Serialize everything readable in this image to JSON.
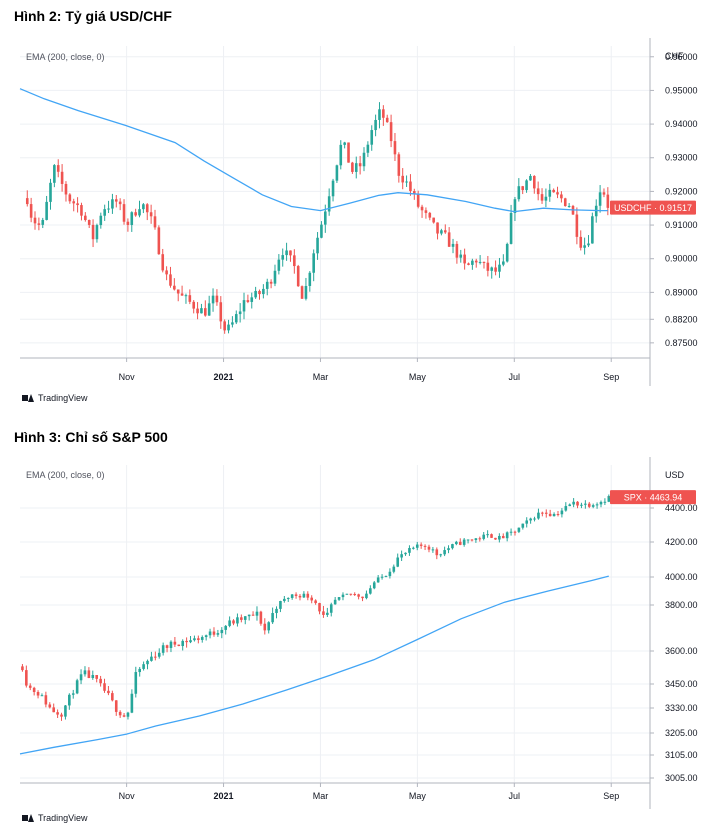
{
  "figures": [
    {
      "title": "Hình 2: Tỷ giá USD/CHF"
    },
    {
      "title": "Hình 3: Chỉ số S&P 500"
    }
  ],
  "branding": {
    "tradingview_label": "TradingView"
  },
  "chart_data": [
    {
      "type": "candlestick",
      "title": "Hình 2: Tỷ giá USD/CHF",
      "indicator_label": "EMA (200, close, 0)",
      "currency_label": "CHF",
      "y_ticks": [
        "0.96000",
        "0.95000",
        "0.94000",
        "0.93000",
        "0.92000",
        "0.91000",
        "0.90000",
        "0.89000",
        "0.88200",
        "0.87500"
      ],
      "x_ticks": [
        {
          "label": "Nov",
          "pos": 3
        },
        {
          "label": "2021",
          "pos": 5
        },
        {
          "label": "Mar",
          "pos": 7
        },
        {
          "label": "May",
          "pos": 9
        },
        {
          "label": "Jul",
          "pos": 11
        },
        {
          "label": "Sep",
          "pos": 13
        }
      ],
      "x_range": [
        0.8,
        13.8
      ],
      "ylim": [
        0.8705,
        0.9632
      ],
      "price_line": {
        "symbol": "USDCHF",
        "value": 0.91517,
        "label": "USDCHF · 0.91517"
      },
      "close_path": [
        [
          0.95,
          0.918
        ],
        [
          1.05,
          0.912
        ],
        [
          1.25,
          0.909
        ],
        [
          1.5,
          0.927
        ],
        [
          1.8,
          0.918
        ],
        [
          2.05,
          0.915
        ],
        [
          2.3,
          0.906
        ],
        [
          2.5,
          0.915
        ],
        [
          2.8,
          0.917
        ],
        [
          3.0,
          0.91
        ],
        [
          3.3,
          0.917
        ],
        [
          3.55,
          0.91
        ],
        [
          3.8,
          0.895
        ],
        [
          4.1,
          0.889
        ],
        [
          4.4,
          0.886
        ],
        [
          4.6,
          0.884
        ],
        [
          4.8,
          0.888
        ],
        [
          5.05,
          0.878
        ],
        [
          5.2,
          0.881
        ],
        [
          5.45,
          0.888
        ],
        [
          5.7,
          0.889
        ],
        [
          5.95,
          0.893
        ],
        [
          6.2,
          0.903
        ],
        [
          6.45,
          0.898
        ],
        [
          6.65,
          0.888
        ],
        [
          6.85,
          0.902
        ],
        [
          7.05,
          0.912
        ],
        [
          7.25,
          0.924
        ],
        [
          7.45,
          0.935
        ],
        [
          7.65,
          0.926
        ],
        [
          7.85,
          0.928
        ],
        [
          8.05,
          0.938
        ],
        [
          8.25,
          0.944
        ],
        [
          8.45,
          0.936
        ],
        [
          8.6,
          0.926
        ],
        [
          8.8,
          0.922
        ],
        [
          9.0,
          0.916
        ],
        [
          9.2,
          0.912
        ],
        [
          9.4,
          0.908
        ],
        [
          9.6,
          0.906
        ],
        [
          9.8,
          0.902
        ],
        [
          10.0,
          0.897
        ],
        [
          10.2,
          0.9
        ],
        [
          10.4,
          0.897
        ],
        [
          10.6,
          0.896
        ],
        [
          10.8,
          0.898
        ],
        [
          11.0,
          0.919
        ],
        [
          11.15,
          0.921
        ],
        [
          11.35,
          0.925
        ],
        [
          11.55,
          0.917
        ],
        [
          11.75,
          0.919
        ],
        [
          11.95,
          0.918
        ],
        [
          12.15,
          0.916
        ],
        [
          12.35,
          0.905
        ],
        [
          12.5,
          0.904
        ],
        [
          12.65,
          0.915
        ],
        [
          12.8,
          0.922
        ],
        [
          12.93,
          0.916
        ]
      ],
      "ema_path": [
        [
          0.8,
          0.9505
        ],
        [
          1.3,
          0.9475
        ],
        [
          2.0,
          0.944
        ],
        [
          3.0,
          0.9395
        ],
        [
          4.0,
          0.9345
        ],
        [
          4.6,
          0.929
        ],
        [
          5.2,
          0.924
        ],
        [
          5.8,
          0.919
        ],
        [
          6.4,
          0.9155
        ],
        [
          7.0,
          0.9143
        ],
        [
          7.6,
          0.9165
        ],
        [
          8.2,
          0.9188
        ],
        [
          8.6,
          0.9196
        ],
        [
          9.2,
          0.919
        ],
        [
          10.0,
          0.917
        ],
        [
          10.6,
          0.915
        ],
        [
          11.0,
          0.914
        ],
        [
          11.6,
          0.915
        ],
        [
          12.2,
          0.9145
        ],
        [
          12.8,
          0.9143
        ],
        [
          12.93,
          0.9143
        ]
      ]
    },
    {
      "type": "candlestick",
      "title": "Hình 3: Chỉ số S&P 500",
      "indicator_label": "EMA (200, close, 0)",
      "currency_label": "USD",
      "y_ticks": [
        "4400.00",
        "4200.00",
        "4000.00",
        "3800.00",
        "3600.00",
        "3450.00",
        "3330.00",
        "3205.00",
        "3105.00",
        "3005.00"
      ],
      "y_tick_values": [
        4400,
        4200,
        4000,
        3800,
        3600,
        3450,
        3330,
        3205,
        3105,
        3005
      ],
      "x_ticks": [
        {
          "label": "Nov",
          "pos": 3
        },
        {
          "label": "2021",
          "pos": 5
        },
        {
          "label": "Mar",
          "pos": 7
        },
        {
          "label": "May",
          "pos": 9
        },
        {
          "label": "Jul",
          "pos": 11
        },
        {
          "label": "Sep",
          "pos": 13
        }
      ],
      "x_range": [
        0.8,
        13.8
      ],
      "price_line": {
        "symbol": "SPX",
        "value": 4463.94,
        "label": "SPX · 4463.94"
      },
      "close_path": [
        [
          0.85,
          3530
        ],
        [
          0.95,
          3440
        ],
        [
          1.2,
          3400
        ],
        [
          1.45,
          3320
        ],
        [
          1.65,
          3300
        ],
        [
          1.9,
          3420
        ],
        [
          2.1,
          3500
        ],
        [
          2.35,
          3470
        ],
        [
          2.6,
          3400
        ],
        [
          2.8,
          3320
        ],
        [
          3.0,
          3280
        ],
        [
          3.2,
          3500
        ],
        [
          3.5,
          3570
        ],
        [
          3.8,
          3620
        ],
        [
          4.1,
          3640
        ],
        [
          4.4,
          3650
        ],
        [
          4.8,
          3680
        ],
        [
          5.1,
          3720
        ],
        [
          5.4,
          3740
        ],
        [
          5.7,
          3760
        ],
        [
          5.85,
          3690
        ],
        [
          6.1,
          3800
        ],
        [
          6.4,
          3870
        ],
        [
          6.7,
          3870
        ],
        [
          6.85,
          3840
        ],
        [
          7.1,
          3730
        ],
        [
          7.3,
          3830
        ],
        [
          7.6,
          3880
        ],
        [
          7.9,
          3860
        ],
        [
          8.1,
          3960
        ],
        [
          8.4,
          4030
        ],
        [
          8.6,
          4110
        ],
        [
          8.9,
          4160
        ],
        [
          9.1,
          4180
        ],
        [
          9.2,
          4180
        ],
        [
          9.4,
          4130
        ],
        [
          9.6,
          4160
        ],
        [
          9.9,
          4200
        ],
        [
          10.2,
          4220
        ],
        [
          10.5,
          4240
        ],
        [
          10.7,
          4220
        ],
        [
          11.0,
          4260
        ],
        [
          11.2,
          4300
        ],
        [
          11.4,
          4350
        ],
        [
          11.6,
          4380
        ],
        [
          11.8,
          4360
        ],
        [
          12.0,
          4390
        ],
        [
          12.2,
          4430
        ],
        [
          12.5,
          4420
        ],
        [
          12.8,
          4440
        ],
        [
          12.95,
          4463.94
        ]
      ],
      "ema_path": [
        [
          0.8,
          3110
        ],
        [
          1.5,
          3140
        ],
        [
          2.4,
          3175
        ],
        [
          3.0,
          3200
        ],
        [
          3.6,
          3240
        ],
        [
          4.5,
          3290
        ],
        [
          5.4,
          3350
        ],
        [
          6.3,
          3420
        ],
        [
          7.2,
          3490
        ],
        [
          8.1,
          3560
        ],
        [
          9.0,
          3650
        ],
        [
          9.9,
          3740
        ],
        [
          10.8,
          3820
        ],
        [
          11.7,
          3900
        ],
        [
          12.6,
          3975
        ],
        [
          12.95,
          4005
        ]
      ]
    }
  ]
}
